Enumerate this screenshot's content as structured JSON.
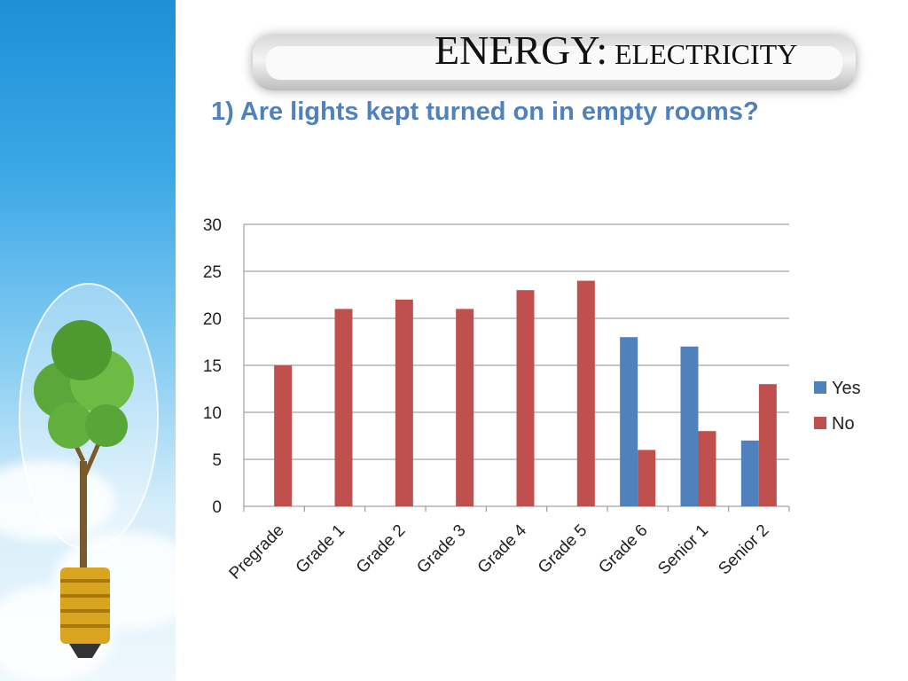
{
  "slide": {
    "title_main": "ENERGY:",
    "title_sub": "ELECTRICITY",
    "subtitle": "1) Are lights kept turned on in empty rooms?"
  },
  "colors": {
    "yes": "#4f81bd",
    "no": "#c0504d",
    "grid": "#8c8c8c",
    "subtitle": "#4f81bd"
  },
  "icons": [
    "light-bulb-tree-icon"
  ],
  "chart_data": {
    "type": "bar",
    "categories": [
      "Pregrade",
      "Grade 1",
      "Grade 2",
      "Grade 3",
      "Grade 4",
      "Grade 5",
      "Grade 6",
      "Senior 1",
      "Senior 2"
    ],
    "series": [
      {
        "name": "Yes",
        "values": [
          0,
          0,
          0,
          0,
          0,
          0,
          18,
          17,
          7
        ]
      },
      {
        "name": "No",
        "values": [
          15,
          21,
          22,
          21,
          23,
          24,
          6,
          8,
          13
        ]
      }
    ],
    "title": "",
    "xlabel": "",
    "ylabel": "",
    "ylim": [
      0,
      30
    ],
    "yticks": [
      0,
      5,
      10,
      15,
      20,
      25,
      30
    ],
    "grid": true,
    "legend": "right"
  }
}
